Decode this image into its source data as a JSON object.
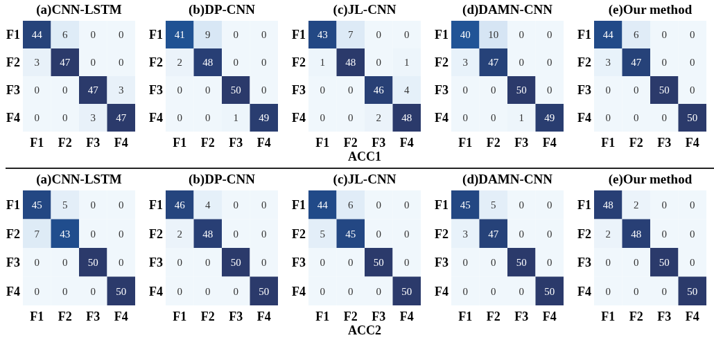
{
  "chart_data": [
    {
      "type": "heatmap",
      "title": "(a)CNN-LSTM",
      "data_labels": true,
      "categories": [
        "F1",
        "F2",
        "F3",
        "F4"
      ],
      "y_categories": [
        "F1",
        "F2",
        "F3",
        "F4"
      ],
      "cells": [
        [
          44,
          6,
          0,
          0
        ],
        [
          3,
          47,
          0,
          0
        ],
        [
          0,
          0,
          47,
          3
        ],
        [
          0,
          0,
          3,
          47
        ]
      ]
    },
    {
      "type": "heatmap",
      "title": "(b)DP-CNN",
      "data_labels": true,
      "categories": [
        "F1",
        "F2",
        "F3",
        "F4"
      ],
      "y_categories": [
        "F1",
        "F2",
        "F3",
        "F4"
      ],
      "cells": [
        [
          41,
          9,
          0,
          0
        ],
        [
          2,
          48,
          0,
          0
        ],
        [
          0,
          0,
          50,
          0
        ],
        [
          0,
          0,
          1,
          49
        ]
      ]
    },
    {
      "type": "heatmap",
      "title": "(c)JL-CNN",
      "xlabel": "ACC1",
      "data_labels": true,
      "categories": [
        "F1",
        "F2",
        "F3",
        "F4"
      ],
      "y_categories": [
        "F1",
        "F2",
        "F3",
        "F4"
      ],
      "cells": [
        [
          43,
          7,
          0,
          0
        ],
        [
          1,
          48,
          0,
          1
        ],
        [
          0,
          0,
          46,
          4
        ],
        [
          0,
          0,
          2,
          48
        ]
      ]
    },
    {
      "type": "heatmap",
      "title": "(d)DAMN-CNN",
      "data_labels": true,
      "categories": [
        "F1",
        "F2",
        "F3",
        "F4"
      ],
      "y_categories": [
        "F1",
        "F2",
        "F3",
        "F4"
      ],
      "cells": [
        [
          40,
          10,
          0,
          0
        ],
        [
          3,
          47,
          0,
          0
        ],
        [
          0,
          0,
          50,
          0
        ],
        [
          0,
          0,
          1,
          49
        ]
      ]
    },
    {
      "type": "heatmap",
      "title": "(e)Our method",
      "data_labels": true,
      "categories": [
        "F1",
        "F2",
        "F3",
        "F4"
      ],
      "y_categories": [
        "F1",
        "F2",
        "F3",
        "F4"
      ],
      "cells": [
        [
          44,
          6,
          0,
          0
        ],
        [
          3,
          47,
          0,
          0
        ],
        [
          0,
          0,
          50,
          0
        ],
        [
          0,
          0,
          0,
          50
        ]
      ]
    },
    {
      "type": "heatmap",
      "title": "(a)CNN-LSTM",
      "data_labels": true,
      "categories": [
        "F1",
        "F2",
        "F3",
        "F4"
      ],
      "y_categories": [
        "F1",
        "F2",
        "F3",
        "F4"
      ],
      "cells": [
        [
          45,
          5,
          0,
          0
        ],
        [
          7,
          43,
          0,
          0
        ],
        [
          0,
          0,
          50,
          0
        ],
        [
          0,
          0,
          0,
          50
        ]
      ]
    },
    {
      "type": "heatmap",
      "title": "(b)DP-CNN",
      "data_labels": true,
      "categories": [
        "F1",
        "F2",
        "F3",
        "F4"
      ],
      "y_categories": [
        "F1",
        "F2",
        "F3",
        "F4"
      ],
      "cells": [
        [
          46,
          4,
          0,
          0
        ],
        [
          2,
          48,
          0,
          0
        ],
        [
          0,
          0,
          50,
          0
        ],
        [
          0,
          0,
          0,
          50
        ]
      ]
    },
    {
      "type": "heatmap",
      "title": "(c)JL-CNN",
      "xlabel": "ACC2",
      "data_labels": true,
      "categories": [
        "F1",
        "F2",
        "F3",
        "F4"
      ],
      "y_categories": [
        "F1",
        "F2",
        "F3",
        "F4"
      ],
      "cells": [
        [
          44,
          6,
          0,
          0
        ],
        [
          5,
          45,
          0,
          0
        ],
        [
          0,
          0,
          50,
          0
        ],
        [
          0,
          0,
          0,
          50
        ]
      ]
    },
    {
      "type": "heatmap",
      "title": "(d)DAMN-CNN",
      "data_labels": true,
      "categories": [
        "F1",
        "F2",
        "F3",
        "F4"
      ],
      "y_categories": [
        "F1",
        "F2",
        "F3",
        "F4"
      ],
      "cells": [
        [
          45,
          5,
          0,
          0
        ],
        [
          3,
          47,
          0,
          0
        ],
        [
          0,
          0,
          50,
          0
        ],
        [
          0,
          0,
          0,
          50
        ]
      ]
    },
    {
      "type": "heatmap",
      "title": "(e)Our method",
      "data_labels": true,
      "categories": [
        "F1",
        "F2",
        "F3",
        "F4"
      ],
      "y_categories": [
        "F1",
        "F2",
        "F3",
        "F4"
      ],
      "cells": [
        [
          48,
          2,
          0,
          0
        ],
        [
          2,
          48,
          0,
          0
        ],
        [
          0,
          0,
          50,
          0
        ],
        [
          0,
          0,
          0,
          50
        ]
      ]
    }
  ]
}
